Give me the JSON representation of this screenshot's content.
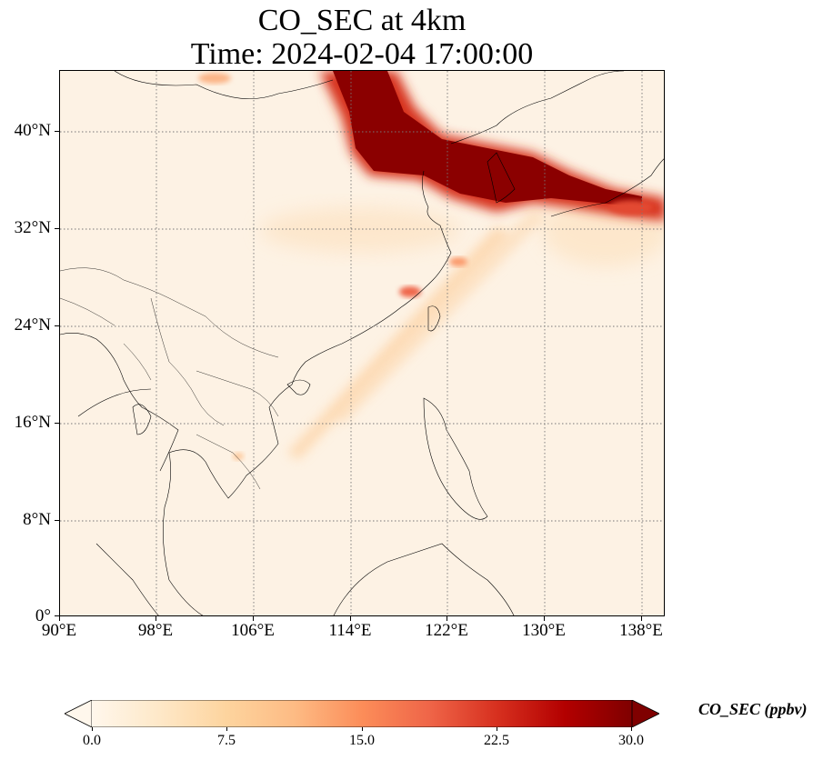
{
  "title": {
    "line1": "CO_SEC at 4km",
    "line2": "Time: 2024-02-04 17:00:00"
  },
  "map": {
    "lat_labels": [
      "40°N",
      "32°N",
      "24°N",
      "16°N",
      "8°N",
      "0°"
    ],
    "lon_labels": [
      "90°E",
      "98°E",
      "106°E",
      "114°E",
      "122°E",
      "130°E",
      "138°E"
    ],
    "extent": {
      "lon_min": 90,
      "lon_max": 140,
      "lat_min": 0,
      "lat_max": 45
    },
    "gridline_style": "dotted"
  },
  "colorbar": {
    "label": "CO_SEC (ppbv)",
    "ticks": [
      "0.0",
      "7.5",
      "15.0",
      "22.5",
      "30.0"
    ],
    "range": [
      0.0,
      30.0
    ],
    "extend": "both",
    "colors": [
      "#fff7ec",
      "#fee8c8",
      "#fdd49e",
      "#fdbb84",
      "#fc8d59",
      "#ef6548",
      "#d7301f",
      "#b30000",
      "#7f0000"
    ]
  }
}
